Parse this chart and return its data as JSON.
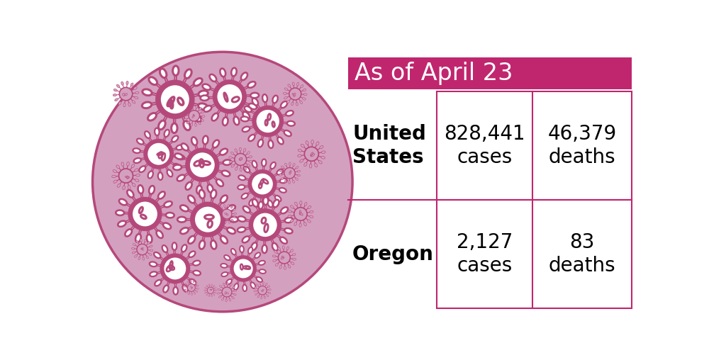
{
  "title": "As of April 23",
  "title_bg_color": "#c0266e",
  "title_text_color": "#ffffff",
  "circle_fill_color": "#d4a0c0",
  "circle_edge_color": "#b5487a",
  "box_edge_color": "#c0266e",
  "row1_label": "United\nStates",
  "row1_cases": "828,441\ncases",
  "row1_deaths": "46,379\ndeaths",
  "row2_label": "Oregon",
  "row2_cases": "2,127\ncases",
  "row2_deaths": "83\ndeaths",
  "label_fontsize": 20,
  "data_fontsize": 20,
  "title_fontsize": 24,
  "bg_color": "#ffffff",
  "virus_color": "#b5487a",
  "virus_fill_large": "#ffffff",
  "virus_fill_small": "#d4a0c0"
}
